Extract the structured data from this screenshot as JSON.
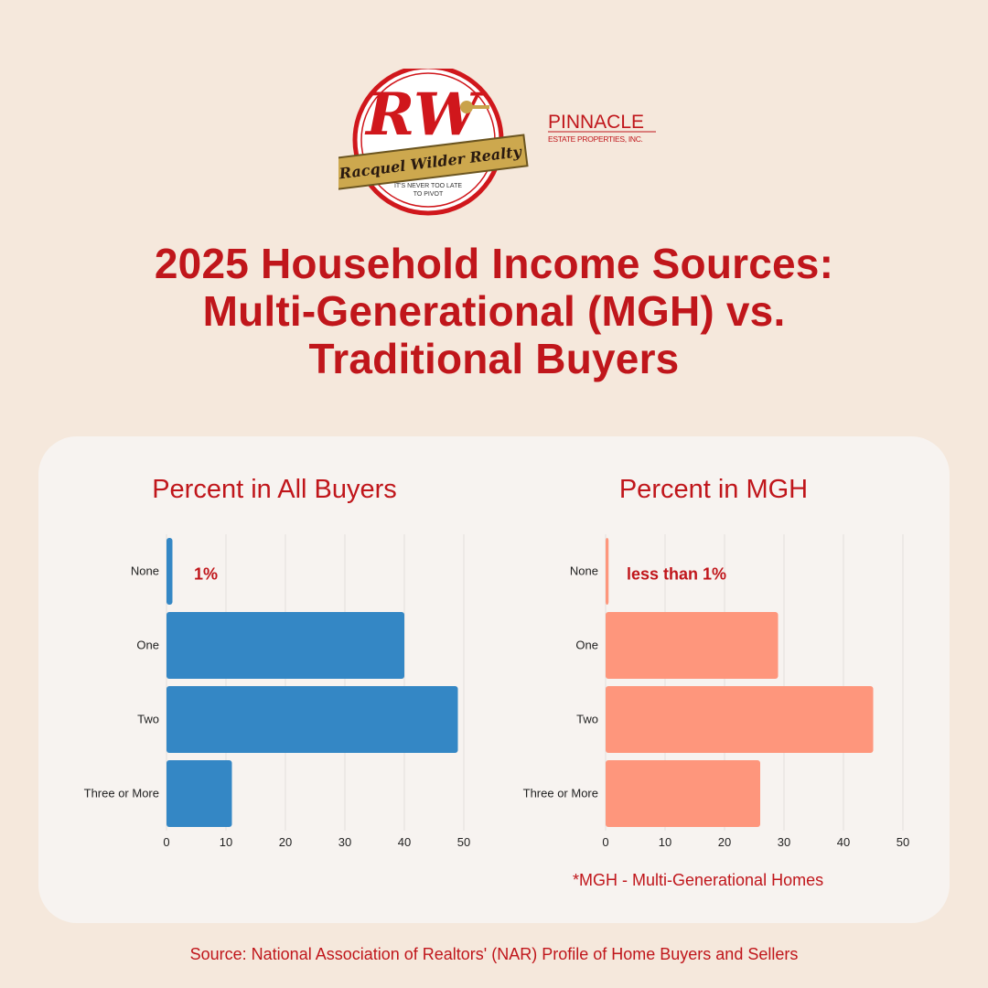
{
  "header": {
    "logo_monogram": "RW",
    "logo_banner": "Racquel Wilder Realty",
    "logo_tagline_1": "IT'S NEVER TOO LATE",
    "logo_tagline_2": "TO PIVOT",
    "partner_name": "PINNACLE",
    "partner_sub": "ESTATE PROPERTIES, INC."
  },
  "title_lines": [
    "2025 Household Income Sources:",
    "Multi-Generational (MGH) vs.",
    "Traditional Buyers"
  ],
  "footnote": "*MGH - Multi-Generational Homes",
  "source": "Source: National Association of Realtors' (NAR) Profile of Home Buyers and Sellers",
  "colors": {
    "accent": "#c0161b",
    "all_buyers_bar": "#3487c5",
    "mgh_bar": "#fe967c",
    "background": "#f5e8dc",
    "panel": "#f7f3f0"
  },
  "chart_data": [
    {
      "type": "bar",
      "orientation": "horizontal",
      "title": "Percent in All Buyers",
      "categories": [
        "None",
        "One",
        "Two",
        "Three or More"
      ],
      "values": [
        1,
        40,
        49,
        11
      ],
      "annotations": [
        {
          "category": "None",
          "text": "1%"
        }
      ],
      "xlim": [
        0,
        50
      ],
      "xticks": [
        0,
        10,
        20,
        30,
        40,
        50
      ],
      "grid": true,
      "color": "#3487c5"
    },
    {
      "type": "bar",
      "orientation": "horizontal",
      "title": "Percent in MGH",
      "categories": [
        "None",
        "One",
        "Two",
        "Three or More"
      ],
      "values": [
        0.5,
        29,
        45,
        26
      ],
      "annotations": [
        {
          "category": "None",
          "text": "less than 1%"
        }
      ],
      "xlim": [
        0,
        50
      ],
      "xticks": [
        0,
        10,
        20,
        30,
        40,
        50
      ],
      "grid": true,
      "color": "#fe967c"
    }
  ]
}
